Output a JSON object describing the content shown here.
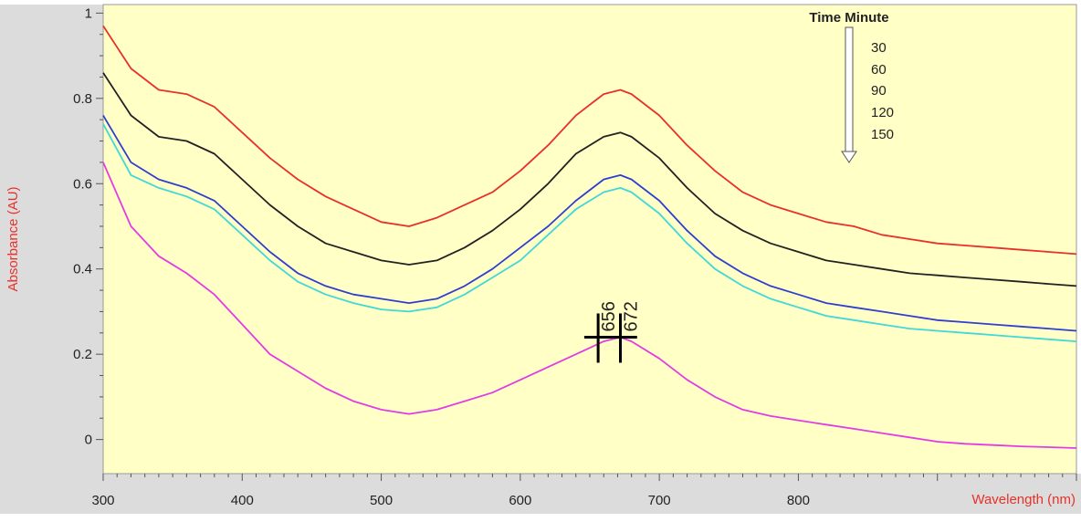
{
  "chart_data": {
    "type": "line",
    "xlabel": "Wavelength (nm)",
    "ylabel": "Absorbance (AU)",
    "xlim": [
      300,
      1000
    ],
    "ylim": [
      -0.08,
      1.02
    ],
    "x_ticks": [
      300,
      400,
      500,
      600,
      700,
      800
    ],
    "y_ticks": [
      0,
      0.2,
      0.4,
      0.6,
      0.8,
      1
    ],
    "y_tick_labels": [
      "0",
      "0.2",
      "0.4",
      "0.6",
      "0.8",
      "1"
    ],
    "legend": {
      "title": "Time Minute",
      "placement": "top-right",
      "entries": [
        "30",
        "60",
        "90",
        "120",
        "150"
      ]
    },
    "peak_labels": [
      {
        "x": 656,
        "y": 0.24,
        "label": "656"
      },
      {
        "x": 672,
        "y": 0.24,
        "label": "672"
      }
    ],
    "series": [
      {
        "color": "#e8312a",
        "x": [
          300,
          320,
          340,
          360,
          380,
          400,
          420,
          440,
          460,
          480,
          500,
          520,
          540,
          560,
          580,
          600,
          620,
          640,
          660,
          672,
          680,
          700,
          720,
          740,
          760,
          780,
          800,
          820,
          840,
          860,
          880,
          900,
          920,
          940,
          960,
          980,
          1000
        ],
        "y": [
          0.97,
          0.87,
          0.82,
          0.81,
          0.78,
          0.72,
          0.66,
          0.61,
          0.57,
          0.54,
          0.51,
          0.5,
          0.52,
          0.55,
          0.58,
          0.63,
          0.69,
          0.76,
          0.81,
          0.82,
          0.81,
          0.76,
          0.69,
          0.63,
          0.58,
          0.55,
          0.53,
          0.51,
          0.5,
          0.48,
          0.47,
          0.46,
          0.455,
          0.45,
          0.445,
          0.44,
          0.435
        ]
      },
      {
        "color": "#222222",
        "x": [
          300,
          320,
          340,
          360,
          380,
          400,
          420,
          440,
          460,
          480,
          500,
          520,
          540,
          560,
          580,
          600,
          620,
          640,
          660,
          672,
          680,
          700,
          720,
          740,
          760,
          780,
          800,
          820,
          840,
          860,
          880,
          900,
          920,
          940,
          960,
          980,
          1000
        ],
        "y": [
          0.86,
          0.76,
          0.71,
          0.7,
          0.67,
          0.61,
          0.55,
          0.5,
          0.46,
          0.44,
          0.42,
          0.41,
          0.42,
          0.45,
          0.49,
          0.54,
          0.6,
          0.67,
          0.71,
          0.72,
          0.71,
          0.66,
          0.59,
          0.53,
          0.49,
          0.46,
          0.44,
          0.42,
          0.41,
          0.4,
          0.39,
          0.385,
          0.38,
          0.375,
          0.37,
          0.365,
          0.36
        ]
      },
      {
        "color": "#2f3fcf",
        "x": [
          300,
          320,
          340,
          360,
          380,
          400,
          420,
          440,
          460,
          480,
          500,
          520,
          540,
          560,
          580,
          600,
          620,
          640,
          660,
          672,
          680,
          700,
          720,
          740,
          760,
          780,
          800,
          820,
          840,
          860,
          880,
          900,
          920,
          940,
          960,
          980,
          1000
        ],
        "y": [
          0.76,
          0.65,
          0.61,
          0.59,
          0.56,
          0.5,
          0.44,
          0.39,
          0.36,
          0.34,
          0.33,
          0.32,
          0.33,
          0.36,
          0.4,
          0.45,
          0.5,
          0.56,
          0.61,
          0.62,
          0.61,
          0.56,
          0.49,
          0.43,
          0.39,
          0.36,
          0.34,
          0.32,
          0.31,
          0.3,
          0.29,
          0.28,
          0.275,
          0.27,
          0.265,
          0.26,
          0.255
        ]
      },
      {
        "color": "#40d8d8",
        "x": [
          300,
          320,
          340,
          360,
          380,
          400,
          420,
          440,
          460,
          480,
          500,
          520,
          540,
          560,
          580,
          600,
          620,
          640,
          660,
          672,
          680,
          700,
          720,
          740,
          760,
          780,
          800,
          820,
          840,
          860,
          880,
          900,
          920,
          940,
          960,
          980,
          1000
        ],
        "y": [
          0.74,
          0.62,
          0.59,
          0.57,
          0.54,
          0.48,
          0.42,
          0.37,
          0.34,
          0.32,
          0.305,
          0.3,
          0.31,
          0.34,
          0.38,
          0.42,
          0.48,
          0.54,
          0.58,
          0.59,
          0.58,
          0.53,
          0.46,
          0.4,
          0.36,
          0.33,
          0.31,
          0.29,
          0.28,
          0.27,
          0.26,
          0.255,
          0.25,
          0.245,
          0.24,
          0.235,
          0.23
        ]
      },
      {
        "color": "#e43be4",
        "x": [
          300,
          320,
          340,
          360,
          380,
          400,
          420,
          440,
          460,
          480,
          500,
          520,
          540,
          560,
          580,
          600,
          620,
          640,
          660,
          672,
          680,
          700,
          720,
          740,
          760,
          780,
          800,
          820,
          840,
          860,
          880,
          900,
          920,
          940,
          960,
          980,
          1000
        ],
        "y": [
          0.65,
          0.5,
          0.43,
          0.39,
          0.34,
          0.27,
          0.2,
          0.16,
          0.12,
          0.09,
          0.07,
          0.06,
          0.07,
          0.09,
          0.11,
          0.14,
          0.17,
          0.2,
          0.23,
          0.24,
          0.23,
          0.19,
          0.14,
          0.1,
          0.07,
          0.055,
          0.045,
          0.035,
          0.025,
          0.015,
          0.005,
          -0.005,
          -0.01,
          -0.013,
          -0.016,
          -0.018,
          -0.02
        ]
      }
    ]
  },
  "style": {
    "plot_bg": "#ffffc6",
    "axis_bg": "#dcdcdc",
    "ylabel_color": "#e8312a",
    "xlabel_color": "#e8312a"
  }
}
